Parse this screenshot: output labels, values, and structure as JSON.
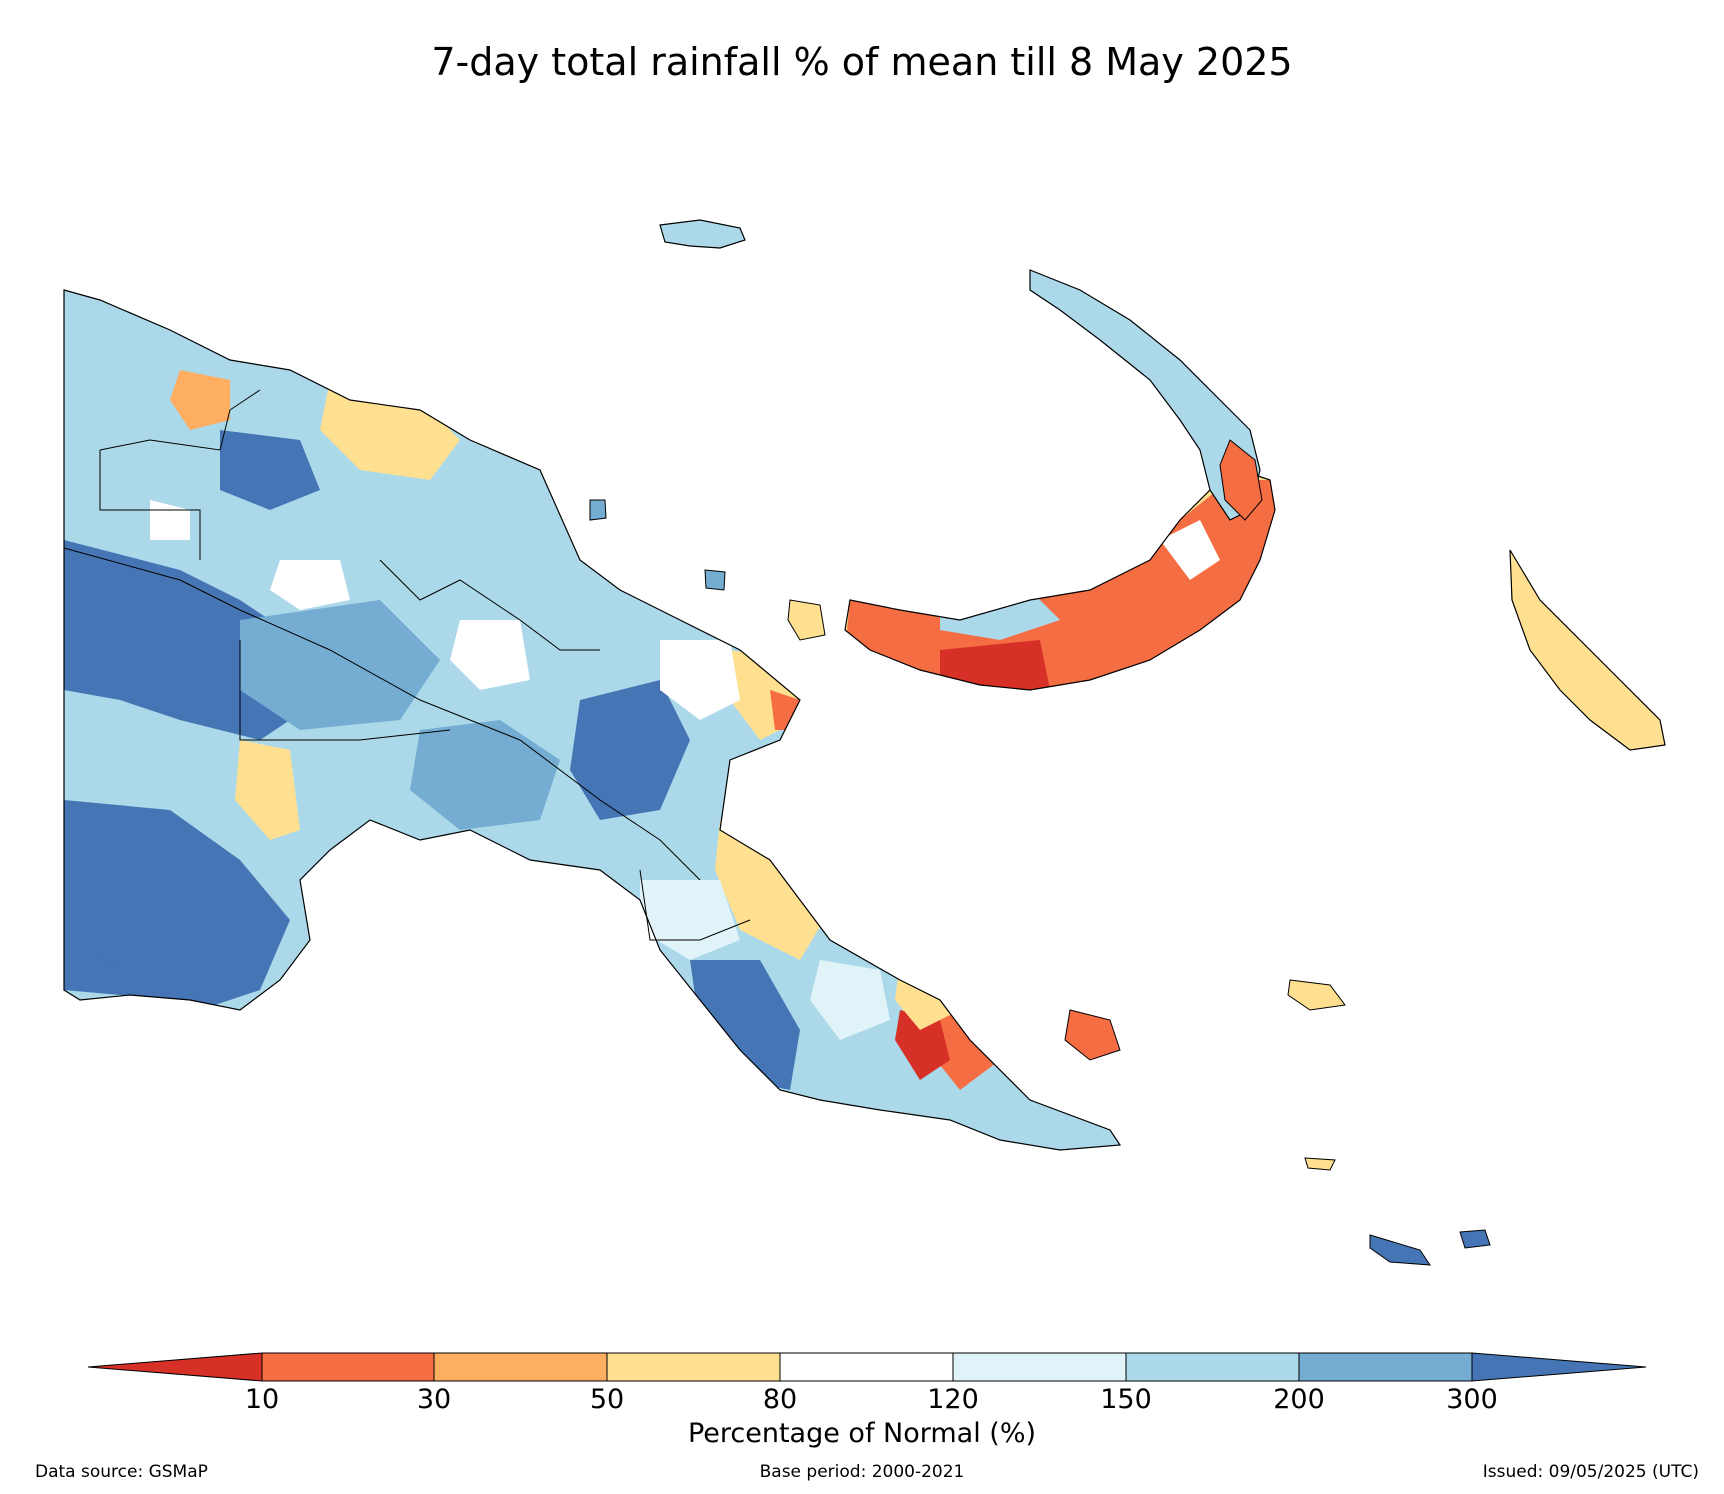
{
  "title": "7-day total rainfall % of mean till 8 May 2025",
  "legend": {
    "title": "Percentage of Normal (%)",
    "ticks": [
      "10",
      "30",
      "50",
      "80",
      "120",
      "150",
      "200",
      "300"
    ],
    "bins": [
      {
        "range": "<10",
        "color": "#d73027"
      },
      {
        "range": "10-30",
        "color": "#f46d43"
      },
      {
        "range": "30-50",
        "color": "#fdae61"
      },
      {
        "range": "50-80",
        "color": "#fee090"
      },
      {
        "range": "80-120",
        "color": "#ffffff"
      },
      {
        "range": "120-150",
        "color": "#e0f3f8"
      },
      {
        "range": "150-200",
        "color": "#abd9e9"
      },
      {
        "range": "200-300",
        "color": "#74add1"
      },
      {
        "range": ">300",
        "color": "#4575b4"
      }
    ]
  },
  "footer": {
    "source": "Data source: GSMaP",
    "base_period": "Base period: 2000-2021",
    "issued": "Issued: 09/05/2025 (UTC)"
  }
}
